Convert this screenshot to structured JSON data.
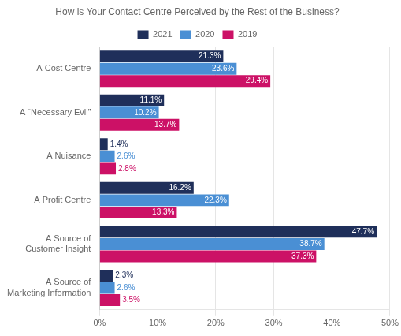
{
  "chart_data": {
    "type": "bar",
    "orientation": "horizontal",
    "title": "How is Your Contact Centre Perceived by the Rest of the Business?",
    "categories": [
      "A Cost Centre",
      "A “Necessary Evil”",
      "A Nuisance",
      "A Profit Centre",
      "A Source of\nCustomer Insight",
      "A Source of\nMarketing Information"
    ],
    "series": [
      {
        "name": "2021",
        "color": "#1f2f5a",
        "values": [
          21.3,
          11.1,
          1.4,
          16.2,
          47.7,
          2.3
        ],
        "value_labels": [
          "21.3%",
          "11.1%",
          "1.4%",
          "16.2%",
          "47.7%",
          "2.3%"
        ]
      },
      {
        "name": "2020",
        "color": "#4a8fd4",
        "values": [
          23.6,
          10.2,
          2.6,
          22.3,
          38.7,
          2.6
        ],
        "value_labels": [
          "23.6%",
          "10.2%",
          "2.6%",
          "22.3%",
          "38.7%",
          "2.6%"
        ]
      },
      {
        "name": "2019",
        "color": "#cc1166",
        "values": [
          29.4,
          13.7,
          2.8,
          13.3,
          37.3,
          3.5
        ],
        "value_labels": [
          "29.4%",
          "13.7%",
          "2.8%",
          "13.3%",
          "37.3%",
          "3.5%"
        ]
      }
    ],
    "xlim": [
      0,
      50
    ],
    "xticks": [
      {
        "value": 0,
        "label": "0%"
      },
      {
        "value": 10,
        "label": "10%"
      },
      {
        "value": 20,
        "label": "20%"
      },
      {
        "value": 30,
        "label": "30%"
      },
      {
        "value": 40,
        "label": "40%"
      },
      {
        "value": 50,
        "label": "50%"
      }
    ],
    "grid": true,
    "legend": "top",
    "data_labels": true
  }
}
